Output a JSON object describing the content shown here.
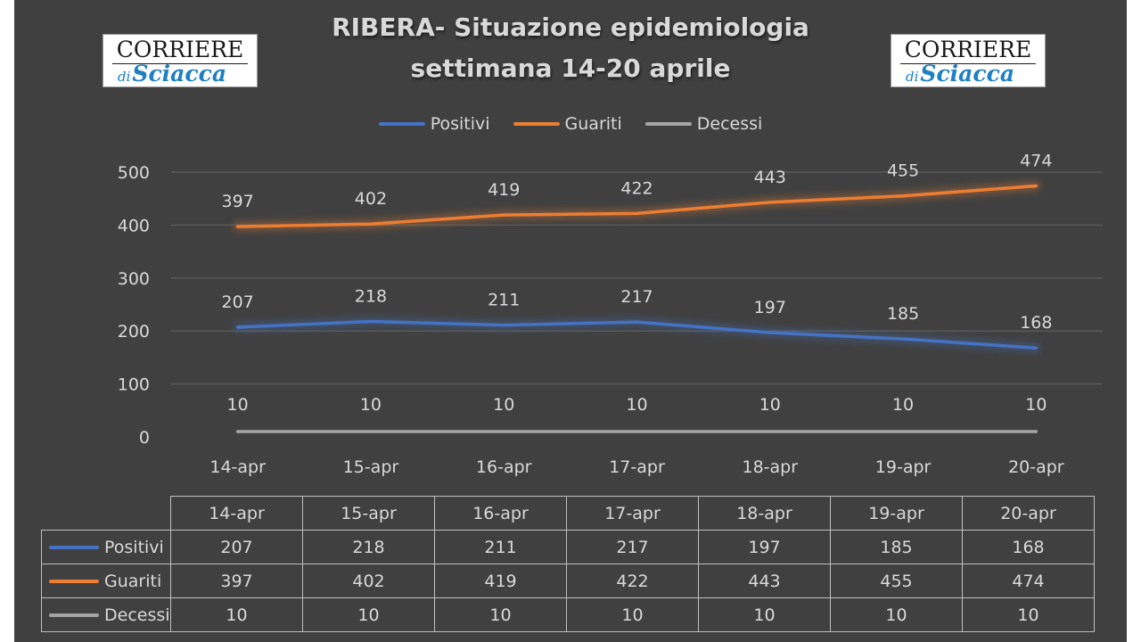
{
  "title_line1": "RIBERA- Situazione epidemiologia",
  "title_line2": "settimana 14-20 aprile",
  "logos": [
    {
      "brand": "CORRIERE",
      "sub_prefix": "di",
      "sub": "Sciacca"
    },
    {
      "brand": "CORRIERE",
      "sub_prefix": "di",
      "sub": "Sciacca"
    }
  ],
  "colors": {
    "Positivi": "#4472c4",
    "Guariti": "#ed7d31",
    "Decessi": "#a5a5a5",
    "grid": "#595959",
    "text": "#d9d9d9"
  },
  "chart_data": {
    "type": "line",
    "categories": [
      "14-apr",
      "15-apr",
      "16-apr",
      "17-apr",
      "18-apr",
      "19-apr",
      "20-apr"
    ],
    "series": [
      {
        "name": "Positivi",
        "values": [
          207,
          218,
          211,
          217,
          197,
          185,
          168
        ]
      },
      {
        "name": "Guariti",
        "values": [
          397,
          402,
          419,
          422,
          443,
          455,
          474
        ]
      },
      {
        "name": "Decessi",
        "values": [
          10,
          10,
          10,
          10,
          10,
          10,
          10
        ]
      }
    ],
    "yticks": [
      0,
      100,
      200,
      300,
      400,
      500
    ],
    "ylim": [
      0,
      500
    ],
    "grid": true,
    "legend": "top-center",
    "data_labels": true,
    "data_table": true
  }
}
